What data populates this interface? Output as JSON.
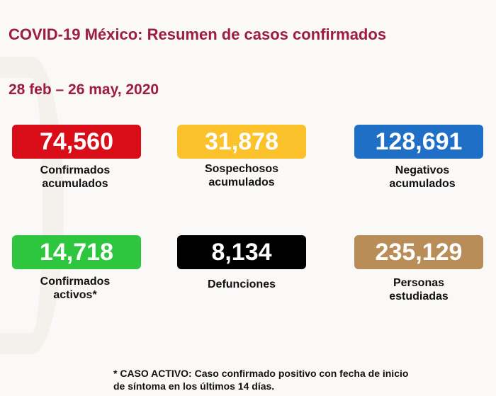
{
  "title": "COVID-19 México: Resumen de casos confirmados",
  "date_range": "28 feb – 26 may, 2020",
  "cards": [
    {
      "value": "74,560",
      "label1": "Confirmados",
      "label2": "acumulados",
      "color": "#d90d17"
    },
    {
      "value": "31,878",
      "label1": "Sospechosos",
      "label2": "acumulados",
      "color": "#fcc22b"
    },
    {
      "value": "128,691",
      "label1": "Negativos",
      "label2": "acumulados",
      "color": "#1f6fc7"
    },
    {
      "value": "14,718",
      "label1": "Confirmados",
      "label2": "activos*",
      "color": "#2fc63f"
    },
    {
      "value": "8,134",
      "label1": "Defunciones",
      "label2": "",
      "color": "#000000"
    },
    {
      "value": "235,129",
      "label1": "Personas",
      "label2": "estudiadas",
      "color": "#b98d58"
    }
  ],
  "footnote": {
    "line1": "* CASO ACTIVO: Caso confirmado positivo con fecha de inicio",
    "line2": "de síntoma en los últimos 14 días."
  }
}
